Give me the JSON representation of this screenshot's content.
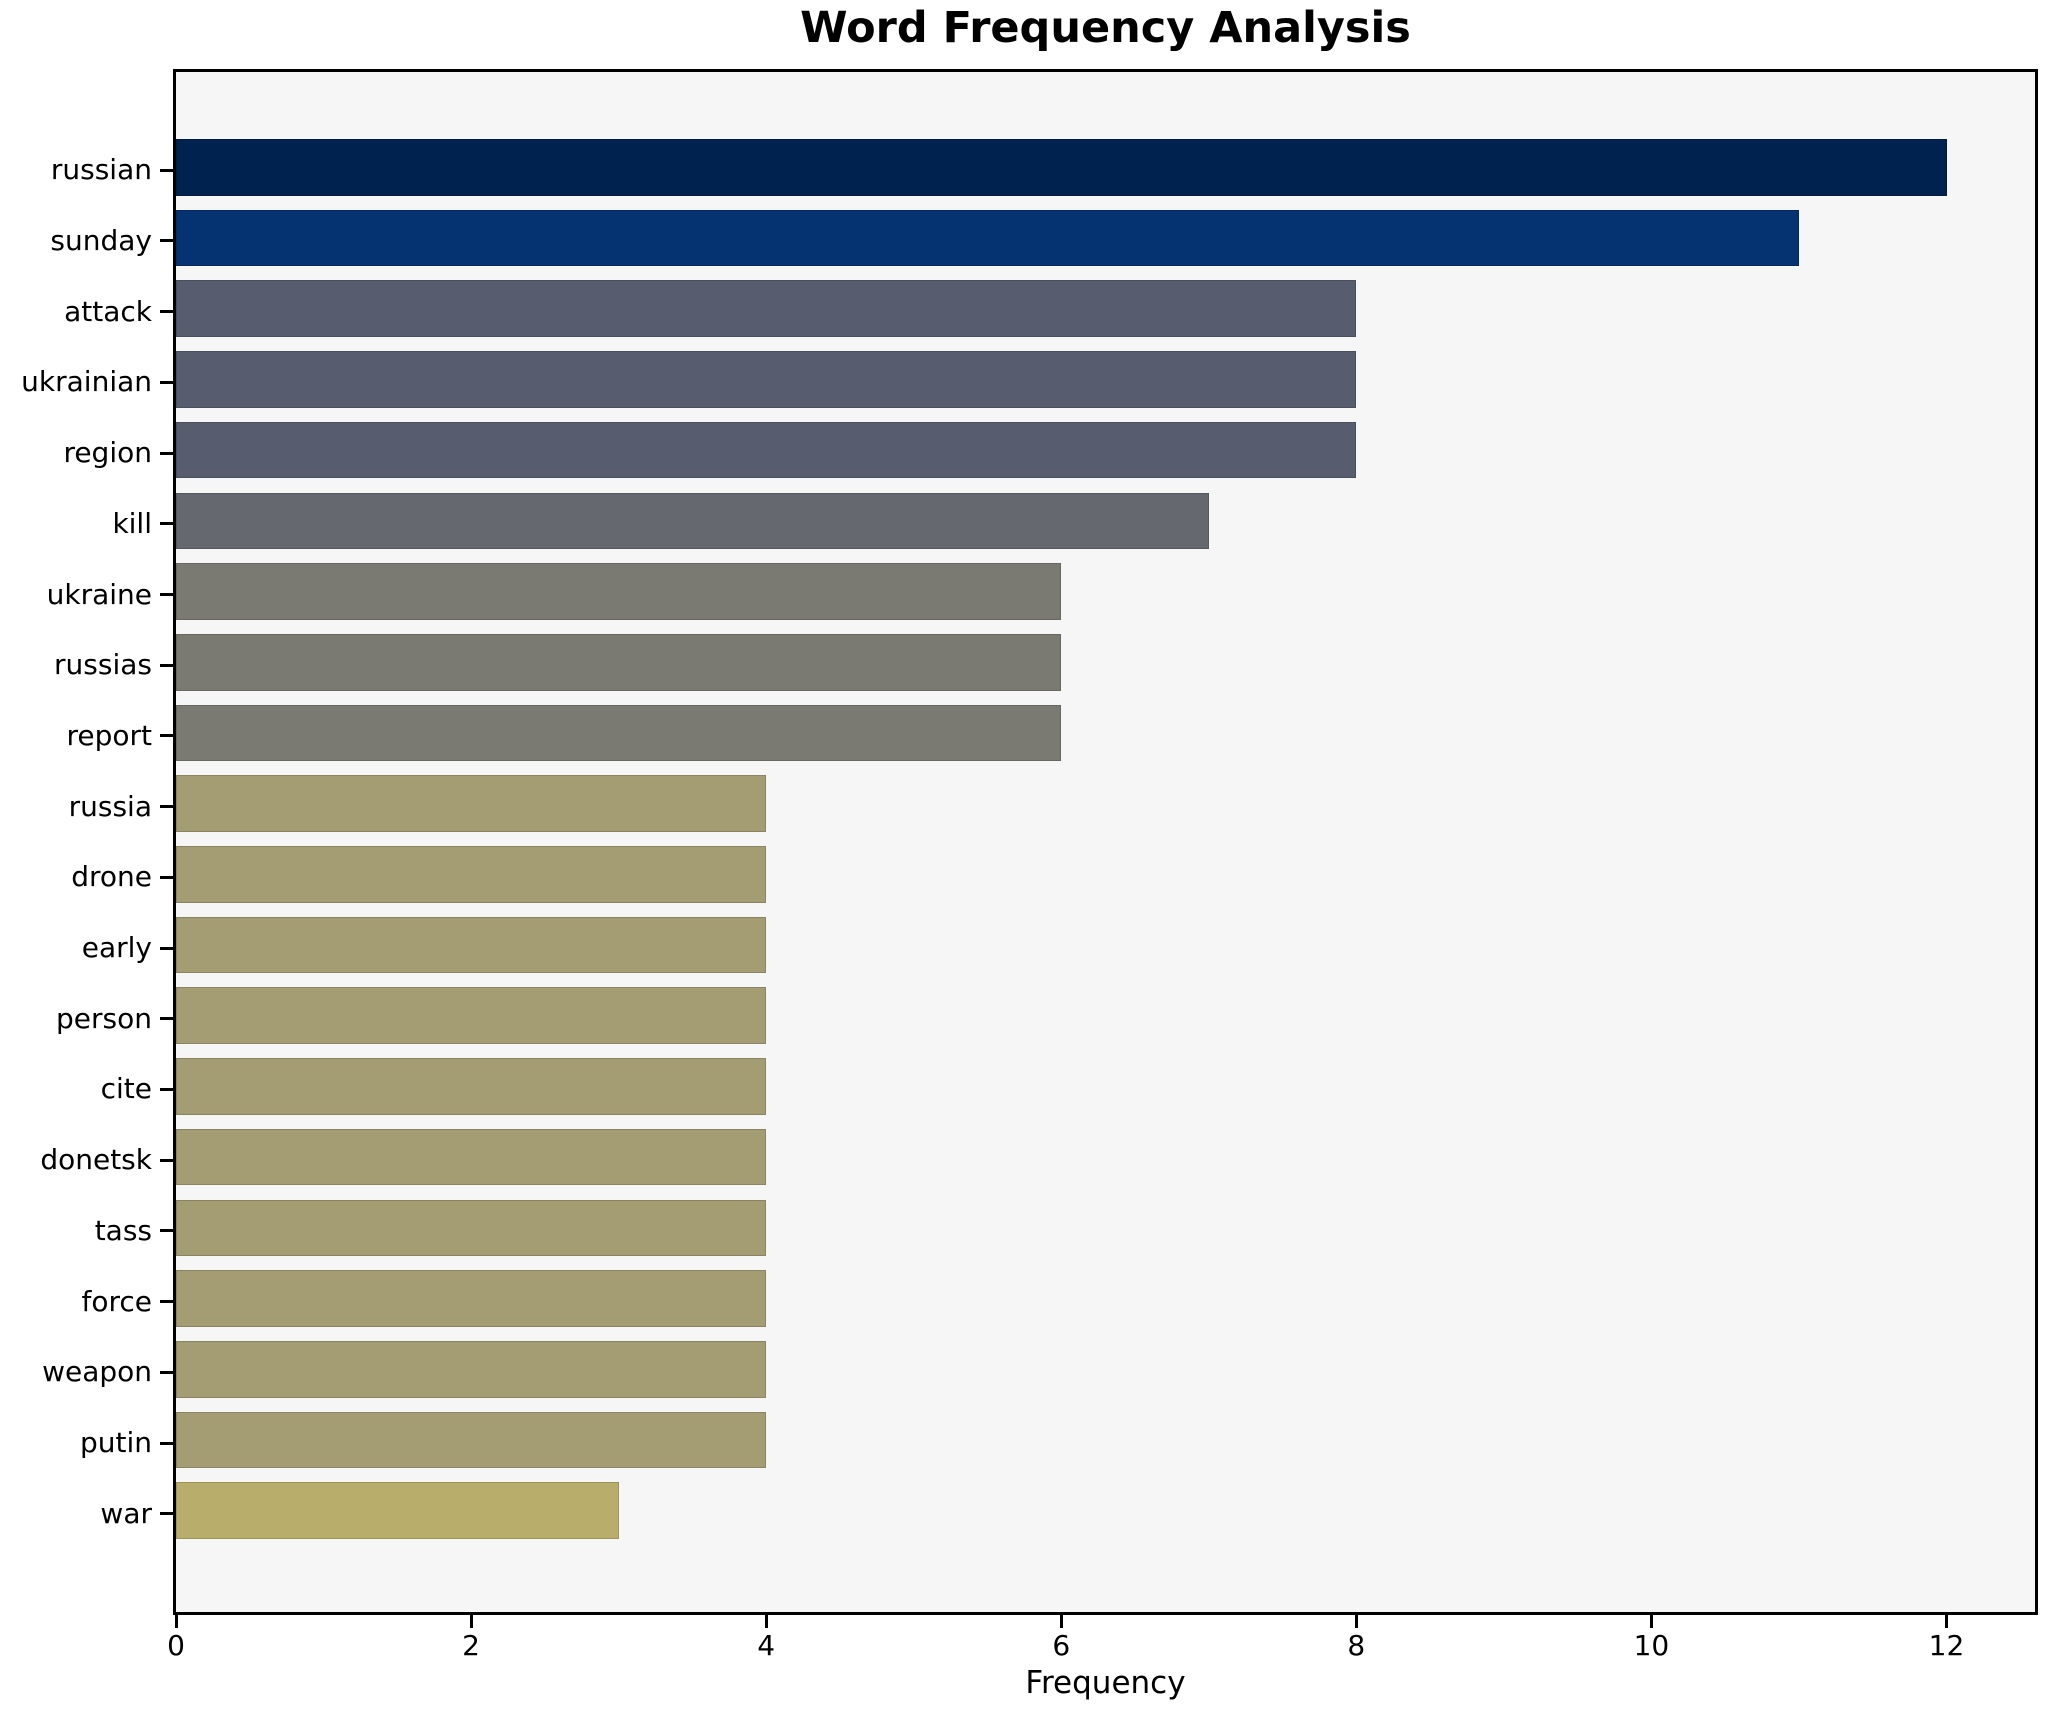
{
  "chart_data": {
    "type": "bar",
    "orientation": "horizontal",
    "title": "Word Frequency Analysis",
    "xlabel": "Frequency",
    "ylabel": "",
    "categories": [
      "russian",
      "sunday",
      "attack",
      "ukrainian",
      "region",
      "kill",
      "ukraine",
      "russias",
      "report",
      "russia",
      "drone",
      "early",
      "person",
      "cite",
      "donetsk",
      "tass",
      "force",
      "weapon",
      "putin",
      "war"
    ],
    "values": [
      12,
      11,
      8,
      8,
      8,
      7,
      6,
      6,
      6,
      4,
      4,
      4,
      4,
      4,
      4,
      4,
      4,
      4,
      4,
      3
    ],
    "bar_colors": [
      "#00224e",
      "#053271",
      "#575d6e",
      "#575d6e",
      "#575d6e",
      "#666870",
      "#7b7a72",
      "#7b7a72",
      "#7b7a72",
      "#a49c73",
      "#a49c73",
      "#a49c73",
      "#a49c73",
      "#a49c73",
      "#a49c73",
      "#a49c73",
      "#a49c73",
      "#a49c73",
      "#a49c73",
      "#b9ad6b"
    ],
    "xlim": [
      0,
      12.6
    ],
    "xticks": [
      0,
      2,
      4,
      6,
      8,
      10,
      12
    ],
    "grid": false,
    "legend": "none",
    "plot_background": "#f6f6f7",
    "figure_background": "#ffffff",
    "colormap": "cividis-reversed-by-value"
  }
}
